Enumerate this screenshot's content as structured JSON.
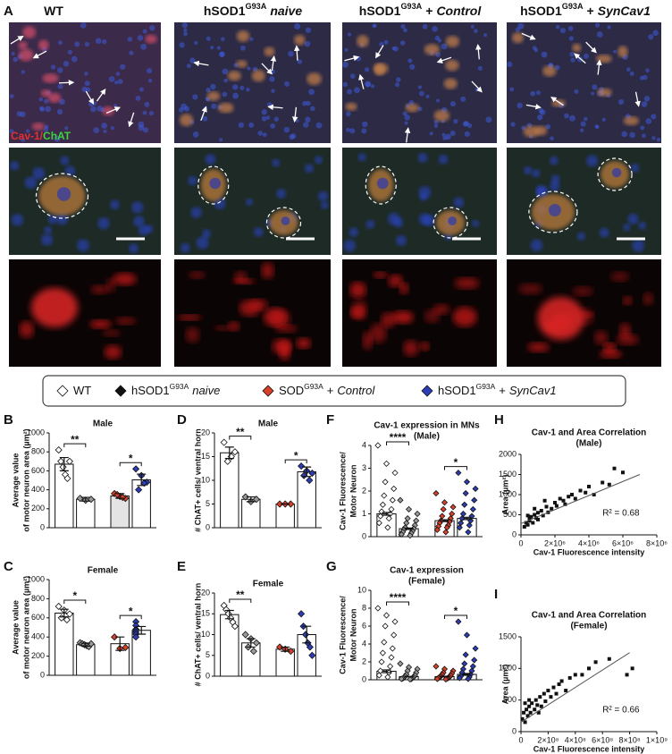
{
  "panel_a": {
    "label": "A",
    "columns": [
      {
        "parts": [
          {
            "text": "WT"
          }
        ]
      },
      {
        "parts": [
          {
            "text": "hSOD1"
          },
          {
            "text": "G93A",
            "style": "sup"
          },
          {
            "text": "naive",
            "style": "italic"
          }
        ]
      },
      {
        "parts": [
          {
            "text": "hSOD1"
          },
          {
            "text": "G93A",
            "style": "sup"
          },
          {
            "text": "+"
          },
          {
            "text": "Control",
            "style": "italic"
          }
        ]
      },
      {
        "parts": [
          {
            "text": "hSOD1"
          },
          {
            "text": "G93A",
            "style": "sup"
          },
          {
            "text": "+"
          },
          {
            "text": "SynCav1",
            "style": "italic"
          }
        ]
      }
    ],
    "stain": {
      "red": "Cav-1/",
      "green": "ChAT"
    }
  },
  "legend": {
    "items": [
      {
        "color": "#ffffff",
        "parts": [
          {
            "text": "WT"
          }
        ]
      },
      {
        "color": "#111111",
        "parts": [
          {
            "text": "hSOD1"
          },
          {
            "text": "G93A",
            "style": "sup"
          },
          {
            "text": "naive",
            "style": "italic"
          }
        ]
      },
      {
        "color": "#d8402a",
        "parts": [
          {
            "text": "SOD"
          },
          {
            "text": "G93A",
            "style": "sup"
          },
          {
            "text": "+"
          },
          {
            "text": "Control",
            "style": "italic"
          }
        ]
      },
      {
        "color": "#2c3db5",
        "parts": [
          {
            "text": "hSOD1"
          },
          {
            "text": "G93A",
            "style": "sup"
          },
          {
            "text": "+"
          },
          {
            "text": "SynCav1",
            "style": "italic"
          }
        ]
      }
    ]
  },
  "chart_data": [
    {
      "type": "bar",
      "label": "B",
      "title": [
        "Male"
      ],
      "ylabel": [
        "Average value",
        "of motor neuron area (µm²)"
      ],
      "ylim": [
        0,
        1000
      ],
      "yticks": [
        0,
        200,
        400,
        600,
        800,
        1000
      ],
      "bar_fills": [
        "#ffffff",
        "#ffffff",
        "#e4e4e4",
        "#ffffff"
      ],
      "point_colors": [
        "#ffffff",
        "#9a9a9a",
        "#d8402a",
        "#2c3db5"
      ],
      "groups": [
        {
          "value": 670,
          "error": 70,
          "points": [
            820,
            700,
            640,
            560,
            520,
            700
          ]
        },
        {
          "value": 300,
          "error": 20,
          "points": [
            310,
            290,
            300
          ]
        },
        {
          "value": 335,
          "error": 25,
          "points": [
            360,
            330,
            310,
            350,
            320
          ]
        },
        {
          "value": 505,
          "error": 60,
          "points": [
            620,
            550,
            480,
            400,
            470
          ]
        }
      ],
      "significance": [
        {
          "label": "**",
          "pair": [
            0,
            1
          ]
        },
        {
          "label": "*",
          "pair": [
            2,
            3
          ]
        }
      ]
    },
    {
      "type": "bar",
      "label": "C",
      "title": [
        "Female"
      ],
      "ylabel": [
        "Average value",
        "of motor neuron area (µm²)"
      ],
      "ylim": [
        0,
        1000
      ],
      "yticks": [
        0,
        200,
        400,
        600,
        800,
        1000
      ],
      "bar_fills": [
        "#ffffff",
        "#ffffff",
        "#ffffff",
        "#ffffff"
      ],
      "point_colors": [
        "#ffffff",
        "#9a9a9a",
        "#d8402a",
        "#2c3db5"
      ],
      "groups": [
        {
          "value": 650,
          "error": 40,
          "points": [
            720,
            680,
            640,
            600,
            580
          ]
        },
        {
          "value": 320,
          "error": 15,
          "points": [
            340,
            330,
            320,
            310,
            300,
            330
          ]
        },
        {
          "value": 330,
          "error": 70,
          "points": [
            400,
            280,
            290
          ]
        },
        {
          "value": 470,
          "error": 40,
          "points": [
            560,
            520,
            480,
            470,
            450,
            430,
            400
          ]
        }
      ],
      "significance": [
        {
          "label": "*",
          "pair": [
            0,
            1
          ]
        },
        {
          "label": "*",
          "pair": [
            2,
            3
          ]
        }
      ]
    },
    {
      "type": "bar",
      "label": "D",
      "title": [
        "Male"
      ],
      "ylabel": [
        "# ChAT+ cells/ ventral horn"
      ],
      "ylim": [
        0,
        20
      ],
      "yticks": [
        0,
        5,
        10,
        15,
        20
      ],
      "bar_fills": [
        "#ffffff",
        "#ffffff",
        "#ffffff",
        "#ffffff"
      ],
      "point_colors": [
        "#ffffff",
        "#9a9a9a",
        "#d8402a",
        "#2c3db5"
      ],
      "groups": [
        {
          "value": 15.8,
          "error": 1.2,
          "points": [
            18,
            16,
            15,
            14
          ]
        },
        {
          "value": 6,
          "error": 0.5,
          "points": [
            6.5,
            5.5,
            6
          ]
        },
        {
          "value": 5,
          "error": 0,
          "points": [
            5,
            5,
            5
          ]
        },
        {
          "value": 11.8,
          "error": 1,
          "points": [
            13,
            12,
            11.5,
            11,
            10
          ]
        }
      ],
      "significance": [
        {
          "label": "**",
          "pair": [
            0,
            1
          ]
        },
        {
          "label": "*",
          "pair": [
            2,
            3
          ]
        }
      ]
    },
    {
      "type": "bar",
      "label": "E",
      "title": [
        "Female"
      ],
      "ylabel": [
        "# ChAT+ cells/ ventral horn"
      ],
      "ylim": [
        0,
        20
      ],
      "yticks": [
        0,
        5,
        10,
        15,
        20
      ],
      "bar_fills": [
        "#ffffff",
        "#ffffff",
        "#ffffff",
        "#ffffff"
      ],
      "point_colors": [
        "#ffffff",
        "#9a9a9a",
        "#d8402a",
        "#2c3db5"
      ],
      "groups": [
        {
          "value": 14.8,
          "error": 1,
          "points": [
            17,
            16,
            15,
            14,
            13,
            12
          ]
        },
        {
          "value": 8,
          "error": 1,
          "points": [
            10,
            9,
            8,
            7,
            6
          ]
        },
        {
          "value": 6.5,
          "error": 0.5,
          "points": [
            7,
            6.5,
            6
          ]
        },
        {
          "value": 10,
          "error": 2,
          "points": [
            15,
            12,
            10,
            8,
            7,
            5
          ]
        }
      ],
      "significance": [
        {
          "label": "**",
          "pair": [
            0,
            1
          ]
        }
      ]
    },
    {
      "type": "bar",
      "label": "F",
      "title": [
        "Cav-1 expression in MNs",
        "(Male)"
      ],
      "ylabel": [
        "Cav-1 Fluorescence/",
        "Motor Neuron"
      ],
      "ylim": [
        0,
        4
      ],
      "yticks": [
        0,
        1,
        2,
        3,
        4
      ],
      "bar_fills": [
        "#ffffff",
        "#ffffff",
        "#ffffff",
        "#ffffff"
      ],
      "point_colors": [
        "#ffffff",
        "#9a9a9a",
        "#d8402a",
        "#2c3db5"
      ],
      "groups": [
        {
          "value": 1.0,
          "error": 0.06,
          "points": [
            4.0,
            3.2,
            2.8,
            2.4,
            2.1,
            1.8,
            1.6,
            1.4,
            1.2,
            1.1,
            1.0,
            0.9,
            0.8,
            0.6,
            0.4
          ]
        },
        {
          "value": 0.35,
          "error": 0.03,
          "points": [
            1.6,
            1.2,
            1.0,
            0.8,
            0.7,
            0.6,
            0.5,
            0.4,
            0.35,
            0.3,
            0.25,
            0.2,
            0.15,
            0.1,
            0.05
          ]
        },
        {
          "value": 0.7,
          "error": 0.04,
          "points": [
            1.9,
            1.5,
            1.3,
            1.2,
            1.0,
            0.9,
            0.8,
            0.7,
            0.65,
            0.6,
            0.5,
            0.45,
            0.4,
            0.3,
            0.2
          ]
        },
        {
          "value": 0.8,
          "error": 0.05,
          "points": [
            2.8,
            2.4,
            2.1,
            1.9,
            1.6,
            1.4,
            1.2,
            1.0,
            0.9,
            0.8,
            0.7,
            0.6,
            0.5,
            0.4,
            0.2
          ]
        }
      ],
      "significance": [
        {
          "label": "****",
          "pair": [
            0,
            1
          ]
        },
        {
          "label": "*",
          "pair": [
            2,
            3
          ]
        }
      ]
    },
    {
      "type": "bar",
      "label": "G",
      "title": [
        "Cav-1 expression",
        "(Female)"
      ],
      "ylabel": [
        "Cav-1 Fluorescence/",
        "Motor Neuron"
      ],
      "ylim": [
        0,
        10
      ],
      "yticks": [
        0,
        2,
        4,
        6,
        8,
        10
      ],
      "bar_fills": [
        "#ffffff",
        "#ffffff",
        "#ffffff",
        "#ffffff"
      ],
      "point_colors": [
        "#ffffff",
        "#9a9a9a",
        "#d8402a",
        "#2c3db5"
      ],
      "groups": [
        {
          "value": 0.95,
          "error": 0.15,
          "points": [
            8.0,
            7.2,
            6.5,
            6.0,
            5.0,
            4.2,
            3.5,
            3.0,
            2.5,
            2.0,
            1.5,
            1.0,
            0.8,
            0.5,
            0.3
          ]
        },
        {
          "value": 0.35,
          "error": 0.03,
          "points": [
            1.8,
            1.4,
            1.2,
            1.0,
            0.8,
            0.6,
            0.5,
            0.4,
            0.3,
            0.25,
            0.2,
            0.15,
            0.1,
            0.1,
            0.05
          ]
        },
        {
          "value": 0.35,
          "error": 0.04,
          "points": [
            1.5,
            1.2,
            1.0,
            0.8,
            0.7,
            0.6,
            0.5,
            0.4,
            0.3,
            0.3,
            0.2,
            0.2,
            0.15,
            0.1,
            0.05
          ]
        },
        {
          "value": 0.6,
          "error": 0.1,
          "points": [
            6.5,
            5.0,
            3.5,
            2.8,
            2.2,
            1.8,
            1.5,
            1.2,
            1.0,
            0.8,
            0.6,
            0.4,
            0.3,
            0.2,
            0.1
          ]
        }
      ],
      "significance": [
        {
          "label": "****",
          "pair": [
            0,
            1
          ]
        },
        {
          "label": "*",
          "pair": [
            2,
            3
          ]
        }
      ]
    },
    {
      "type": "scatter",
      "label": "H",
      "title": [
        "Cav-1 and Area Correlation",
        "(Male)"
      ],
      "xlabel": "Cav-1 Fluorescence intensity",
      "ylabel": [
        "Area (µm²)"
      ],
      "xlim": [
        0,
        8000000
      ],
      "xticks": [
        0,
        {
          "value": 2000000,
          "label": "2×10⁶"
        },
        {
          "value": 4000000,
          "label": "4×10⁶"
        },
        {
          "value": 6000000,
          "label": "6×10⁶"
        },
        {
          "value": 8000000,
          "label": "8×10⁶"
        }
      ],
      "ylim": [
        0,
        2000
      ],
      "yticks": [
        0,
        500,
        1000,
        1500,
        2000
      ],
      "color": "#111111",
      "x": [
        200000,
        300000,
        400000,
        500000,
        500000,
        600000,
        700000,
        800000,
        900000,
        1000000,
        1000000,
        1200000,
        1300000,
        1500000,
        1600000,
        1800000,
        2000000,
        2100000,
        2300000,
        2500000,
        2600000,
        2800000,
        3000000,
        3200000,
        3500000,
        3800000,
        4000000,
        4300000,
        4800000,
        5200000,
        5500000,
        6000000,
        400000,
        800000,
        1400000
      ],
      "y": [
        200,
        300,
        250,
        400,
        350,
        450,
        300,
        500,
        420,
        550,
        380,
        600,
        480,
        700,
        560,
        650,
        800,
        720,
        900,
        850,
        760,
        950,
        1000,
        900,
        1100,
        1050,
        1200,
        1000,
        1300,
        1250,
        1650,
        1550,
        480,
        650,
        850
      ],
      "trendline": {
        "x": [
          0,
          7000000
        ],
        "y": [
          280,
          1500
        ]
      },
      "annotation": "R² = 0.68"
    },
    {
      "type": "scatter",
      "label": "I",
      "title": [
        "Cav-1 and Area Correlation",
        "(Female)"
      ],
      "xlabel": "Cav-1 Fluorescence intensity",
      "ylabel": [
        "Area (µm²)"
      ],
      "xlim": [
        0,
        1000000000
      ],
      "xticks": [
        0,
        {
          "value": 200000000,
          "label": "2×10⁸"
        },
        {
          "value": 400000000,
          "label": "4×10⁸"
        },
        {
          "value": 600000000,
          "label": "6×10⁸"
        },
        {
          "value": 800000000,
          "label": "8×10⁸"
        },
        {
          "value": 1000000000,
          "label": "1×10⁹"
        }
      ],
      "ylim": [
        0,
        1500
      ],
      "yticks": [
        0,
        500,
        1000,
        1500
      ],
      "color": "#111111",
      "x": [
        10000000,
        20000000,
        30000000,
        40000000,
        50000000,
        60000000,
        70000000,
        80000000,
        100000000,
        110000000,
        120000000,
        140000000,
        150000000,
        170000000,
        180000000,
        200000000,
        220000000,
        240000000,
        260000000,
        280000000,
        300000000,
        330000000,
        360000000,
        400000000,
        450000000,
        500000000,
        550000000,
        650000000,
        780000000,
        820000000,
        30000000,
        60000000,
        130000000
      ],
      "y": [
        200,
        300,
        150,
        350,
        250,
        400,
        300,
        450,
        350,
        500,
        420,
        550,
        400,
        600,
        480,
        650,
        550,
        700,
        600,
        750,
        800,
        650,
        850,
        900,
        900,
        1000,
        1100,
        1150,
        900,
        1000,
        450,
        500,
        300
      ],
      "trendline": {
        "x": [
          0,
          800000000
        ],
        "y": [
          150,
          1250
        ]
      },
      "annotation": "R² = 0.66"
    }
  ]
}
